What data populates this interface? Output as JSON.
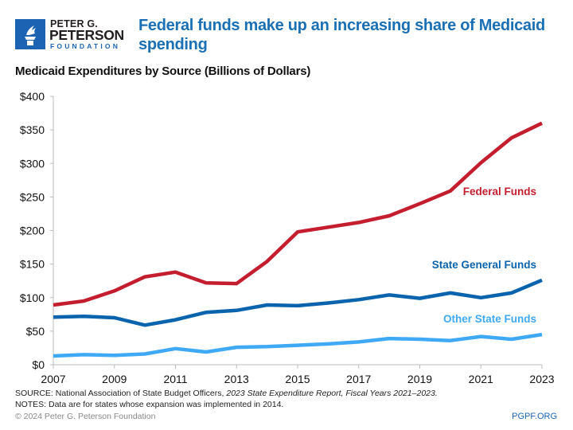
{
  "header": {
    "logo": {
      "line1": "PETER G.",
      "line2": "PETERSON",
      "line3": "FOUNDATION"
    },
    "title": "Federal funds make up an increasing share of Medicaid spending",
    "subtitle": "Medicaid Expenditures by Source (Billions of Dollars)"
  },
  "chart_data": {
    "type": "line",
    "title": "Medicaid Expenditures by Source (Billions of Dollars)",
    "xlabel": "",
    "ylabel": "",
    "x": [
      2007,
      2008,
      2009,
      2010,
      2011,
      2012,
      2013,
      2014,
      2015,
      2016,
      2017,
      2018,
      2019,
      2020,
      2021,
      2022,
      2023
    ],
    "xticks": [
      "2007",
      "2009",
      "2011",
      "2013",
      "2015",
      "2017",
      "2019",
      "2021",
      "2023"
    ],
    "yticks": [
      "$0",
      "$50",
      "$100",
      "$150",
      "$200",
      "$250",
      "$300",
      "$350",
      "$400"
    ],
    "ylim": [
      0,
      400
    ],
    "xlim": [
      2007,
      2023
    ],
    "grid": false,
    "legend": "direct labels at right",
    "series": [
      {
        "name": "Federal Funds",
        "color": "#c41e2e",
        "values": [
          89,
          95,
          110,
          131,
          138,
          122,
          121,
          154,
          198,
          205,
          212,
          222,
          240,
          259,
          301,
          338,
          360
        ]
      },
      {
        "name": "State General Funds",
        "color": "#0a63ad",
        "values": [
          71,
          72,
          70,
          59,
          67,
          78,
          81,
          89,
          88,
          92,
          97,
          104,
          99,
          107,
          100,
          107,
          126
        ]
      },
      {
        "name": "Other State Funds",
        "color": "#3fa9f5",
        "values": [
          13,
          15,
          14,
          16,
          24,
          19,
          26,
          27,
          29,
          31,
          34,
          39,
          38,
          36,
          42,
          38,
          45
        ]
      }
    ]
  },
  "footer": {
    "source_prefix": "SOURCE: National Association of State Budget Officers, ",
    "source_italic": "2023 State Expenditure Report, Fiscal Years 2021–2023.",
    "notes": "NOTES: Data are for states whose expansion was implemented in 2014.",
    "copyright": "© 2024 Peter G. Peterson Foundation",
    "site": "PGPF.ORG"
  }
}
